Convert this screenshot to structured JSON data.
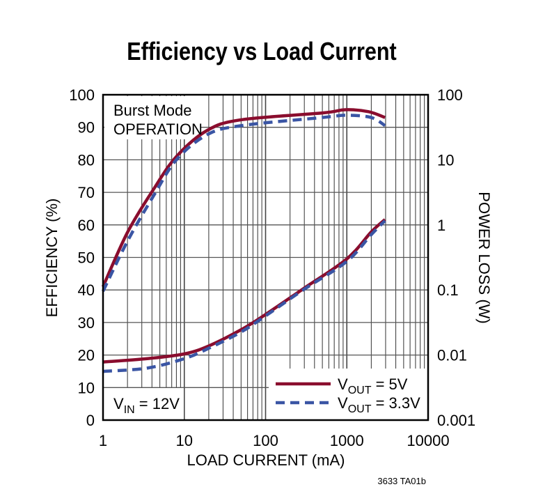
{
  "chart_data": {
    "type": "line",
    "title": "Efficiency vs Load Current",
    "xlabel": "LOAD CURRENT (mA)",
    "ylabel": "EFFICIENCY (%)",
    "y2label": "POWER LOSS (W)",
    "xscale": "log",
    "xlim": [
      1,
      10000
    ],
    "ylim": [
      0,
      100
    ],
    "y2scale": "log",
    "y2lim": [
      0.001,
      100
    ],
    "grid": true,
    "legend_position": "bottom-right",
    "x_ticks": [
      "1",
      "10",
      "100",
      "1000",
      "10000"
    ],
    "y_ticks": [
      "0",
      "10",
      "20",
      "30",
      "40",
      "50",
      "60",
      "70",
      "80",
      "90",
      "100"
    ],
    "y2_ticks": [
      "0.001",
      "0.01",
      "0.1",
      "1",
      "10",
      "100"
    ],
    "annotations": {
      "mode_line1": "Burst Mode",
      "mode_line2": "OPERATION",
      "vin_main": "V",
      "vin_sub": "IN",
      "vin_rest": " = 12V",
      "figure_id": "3633 TA01b"
    },
    "series": [
      {
        "name": "VOUT = 5V",
        "legend_main": "V",
        "legend_sub": "OUT",
        "legend_rest": " = 5V",
        "axis": "efficiency",
        "color": "#8a0d2e",
        "style": "solid",
        "x": [
          1,
          2,
          4.2,
          8,
          19,
          50,
          500,
          960,
          1850,
          2950
        ],
        "y": [
          41,
          57.7,
          71,
          81,
          89,
          92.3,
          94.4,
          95.4,
          94.8,
          93
        ]
      },
      {
        "name": "VOUT = 3.3V",
        "legend_main": "V",
        "legend_sub": "OUT",
        "legend_rest": " = 3.3V",
        "axis": "efficiency",
        "color": "#3a55a4",
        "style": "dashed",
        "x": [
          1,
          2,
          4.2,
          8,
          19,
          50,
          500,
          1000,
          2000,
          2950
        ],
        "y": [
          39.6,
          55,
          69,
          80,
          87.7,
          90.5,
          93,
          93.7,
          93,
          90.5
        ]
      },
      {
        "name": "VOUT = 5V",
        "axis": "power_loss",
        "color": "#8a0d2e",
        "style": "solid",
        "x": [
          1,
          3.5,
          10,
          20,
          50,
          100,
          300,
          1000,
          2000,
          2950
        ],
        "y": [
          0.0078,
          0.0088,
          0.0104,
          0.0138,
          0.0245,
          0.042,
          0.107,
          0.3,
          0.78,
          1.21
        ]
      },
      {
        "name": "VOUT = 3.3V",
        "axis": "power_loss",
        "color": "#3a55a4",
        "style": "dashed",
        "x": [
          1,
          3.5,
          10,
          20,
          50,
          100,
          300,
          1000,
          2000,
          2950
        ],
        "y": [
          0.0056,
          0.0063,
          0.0088,
          0.0127,
          0.0226,
          0.04,
          0.103,
          0.275,
          0.71,
          1.16
        ]
      }
    ]
  }
}
